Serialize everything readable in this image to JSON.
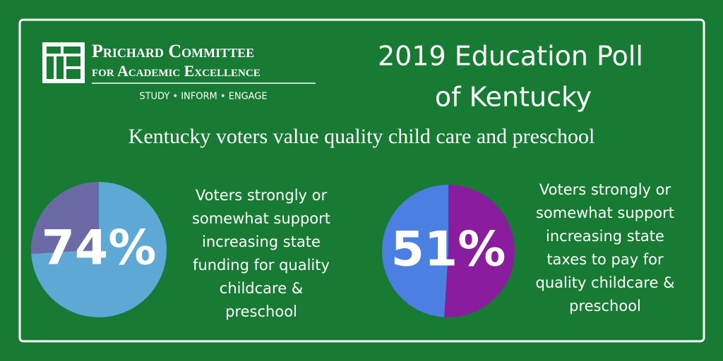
{
  "header": {
    "logo": {
      "name_line1": "Prichard Committee",
      "name_line2": "for Academic Excellence",
      "tagline": "STUDY • INFORM • ENGAGE"
    },
    "title_lines": [
      "2019 Education Poll",
      "of Kentucky"
    ],
    "subtitle": "Kentucky voters value quality child care and preschool"
  },
  "chart_data": [
    {
      "type": "pie",
      "values": [
        74,
        26
      ],
      "value_labels": [
        "74%",
        null
      ],
      "colors": [
        "#5ea8d6",
        "#6b6aa6"
      ],
      "caption_lines": [
        "Voters strongly or",
        "somewhat support",
        "increasing state",
        "funding for quality",
        "childcare &",
        "preschool"
      ]
    },
    {
      "type": "pie",
      "values": [
        51,
        49
      ],
      "value_labels": [
        "51%",
        null
      ],
      "colors": [
        "#8a1d9e",
        "#4b80e2"
      ],
      "caption_lines": [
        "Voters strongly or",
        "somewhat support",
        "increasing state",
        "taxes to pay for",
        "quality childcare &",
        "preschool"
      ]
    }
  ]
}
